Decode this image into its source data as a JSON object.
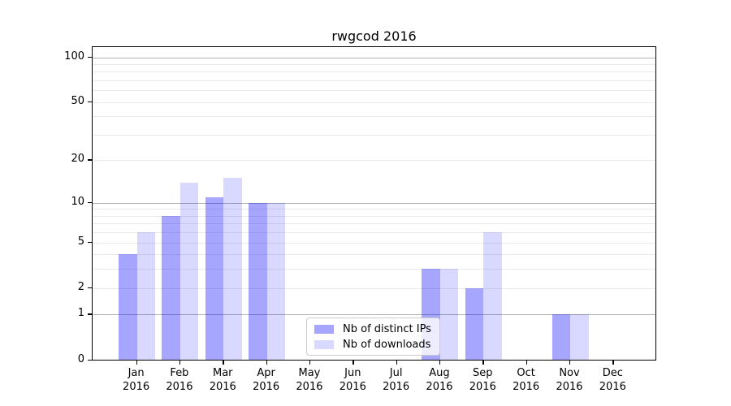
{
  "chart_data": {
    "type": "bar",
    "title": "rwgcod 2016",
    "xlabel": "",
    "ylabel": "",
    "categories": [
      "Jan",
      "Feb",
      "Mar",
      "Apr",
      "May",
      "Jun",
      "Jul",
      "Aug",
      "Sep",
      "Oct",
      "Nov",
      "Dec"
    ],
    "year_label": "2016",
    "series": [
      {
        "name": "Nb of distinct IPs",
        "color": "rgba(0,0,255,0.35)",
        "color_hex_over_white": "#a6a6ff",
        "values": [
          4,
          8,
          11,
          10,
          0,
          0,
          0,
          3,
          2,
          0,
          1,
          0
        ]
      },
      {
        "name": "Nb of downloads",
        "color": "rgba(0,0,255,0.15)",
        "color_hex_over_white": "#d9d9ff",
        "values": [
          6,
          14,
          15,
          10,
          0,
          0,
          0,
          3,
          6,
          0,
          1,
          0
        ]
      }
    ],
    "yscale": "log(1+x)",
    "ylim": [
      0,
      117
    ],
    "ytick_values": [
      0,
      1,
      2,
      5,
      10,
      20,
      50,
      100
    ],
    "major_gridline_values": [
      1,
      10,
      100
    ],
    "minor_gridline_values": [
      2,
      3,
      4,
      5,
      6,
      7,
      8,
      9,
      20,
      30,
      40,
      50,
      60,
      70,
      80,
      90
    ],
    "grid": true,
    "legend_position": "lower center-left inside plot"
  }
}
